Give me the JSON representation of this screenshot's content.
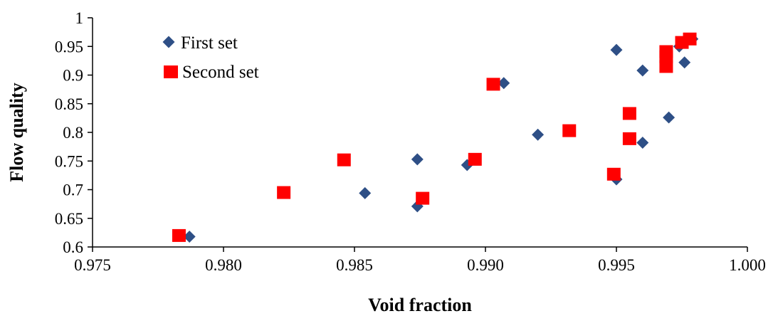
{
  "chart_data": {
    "type": "scatter",
    "xlabel": "Void fraction",
    "ylabel": "Flow quality",
    "xlim": [
      0.975,
      1.0
    ],
    "ylim": [
      0.6,
      1.0
    ],
    "x_ticks": [
      "0.975",
      "0.980",
      "0.985",
      "0.990",
      "0.995",
      "1.000"
    ],
    "y_ticks": [
      "0.6",
      "0.65",
      "0.7",
      "0.75",
      "0.8",
      "0.85",
      "0.9",
      "0.95",
      "1"
    ],
    "grid": false,
    "legend_position": "top-left",
    "series": [
      {
        "name": "First set",
        "marker": "diamond",
        "color": "#2E4F86",
        "points": [
          [
            0.9787,
            0.618
          ],
          [
            0.9854,
            0.694
          ],
          [
            0.9874,
            0.671
          ],
          [
            0.9874,
            0.753
          ],
          [
            0.9893,
            0.743
          ],
          [
            0.9907,
            0.886
          ],
          [
            0.992,
            0.796
          ],
          [
            0.995,
            0.944
          ],
          [
            0.995,
            0.718
          ],
          [
            0.996,
            0.908
          ],
          [
            0.996,
            0.782
          ],
          [
            0.997,
            0.826
          ],
          [
            0.9974,
            0.95
          ],
          [
            0.9976,
            0.922
          ],
          [
            0.9979,
            0.963
          ]
        ]
      },
      {
        "name": "Second set",
        "marker": "square",
        "color": "#FF0000",
        "points": [
          [
            0.9783,
            0.62
          ],
          [
            0.9823,
            0.695
          ],
          [
            0.9846,
            0.752
          ],
          [
            0.9876,
            0.685
          ],
          [
            0.9896,
            0.753
          ],
          [
            0.9903,
            0.884
          ],
          [
            0.9932,
            0.803
          ],
          [
            0.9949,
            0.727
          ],
          [
            0.9955,
            0.833
          ],
          [
            0.9955,
            0.789
          ],
          [
            0.9969,
            0.941
          ],
          [
            0.9969,
            0.932
          ],
          [
            0.9969,
            0.915
          ],
          [
            0.9975,
            0.957
          ],
          [
            0.9978,
            0.963
          ]
        ]
      }
    ]
  }
}
